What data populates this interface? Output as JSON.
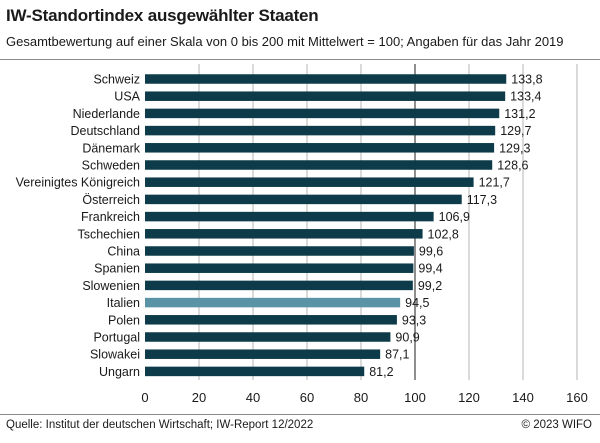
{
  "title": "IW-Standortindex ausgewählter Staaten",
  "subtitle": "Gesamtbewertung auf einer Skala von 0 bis 200 mit Mittelwert = 100; Angaben für das Jahr 2019",
  "source": "Quelle: Institut der deutschen Wirtschaft; IW-Report 12/2022",
  "copyright": "© 2023 WIFO",
  "colors": {
    "bar": "#0d3b4a",
    "highlight": "#5a93a6",
    "grid": "#b5b5b5"
  },
  "chart_data": {
    "type": "bar",
    "orientation": "horizontal",
    "title": "IW-Standortindex ausgewählter Staaten",
    "xlabel": "",
    "ylabel": "",
    "xlim": [
      0,
      160
    ],
    "xticks": [
      0,
      20,
      40,
      60,
      80,
      100,
      120,
      140,
      160
    ],
    "reference_line": 100,
    "categories": [
      "Schweiz",
      "USA",
      "Niederlande",
      "Deutschland",
      "Dänemark",
      "Schweden",
      "Vereinigtes Königreich",
      "Österreich",
      "Frankreich",
      "Tschechien",
      "China",
      "Spanien",
      "Slowenien",
      "Italien",
      "Polen",
      "Portugal",
      "Slowakei",
      "Ungarn"
    ],
    "values": [
      133.8,
      133.4,
      131.2,
      129.7,
      129.3,
      128.6,
      121.7,
      117.3,
      106.9,
      102.8,
      99.6,
      99.4,
      99.2,
      94.5,
      93.3,
      90.9,
      87.1,
      81.2
    ],
    "value_labels": [
      "133,8",
      "133,4",
      "131,2",
      "129,7",
      "129,3",
      "128,6",
      "121,7",
      "117,3",
      "106,9",
      "102,8",
      "99,6",
      "99,4",
      "99,2",
      "94,5",
      "93,3",
      "90,9",
      "87,1",
      "81,2"
    ],
    "highlighted": [
      "Italien"
    ]
  }
}
